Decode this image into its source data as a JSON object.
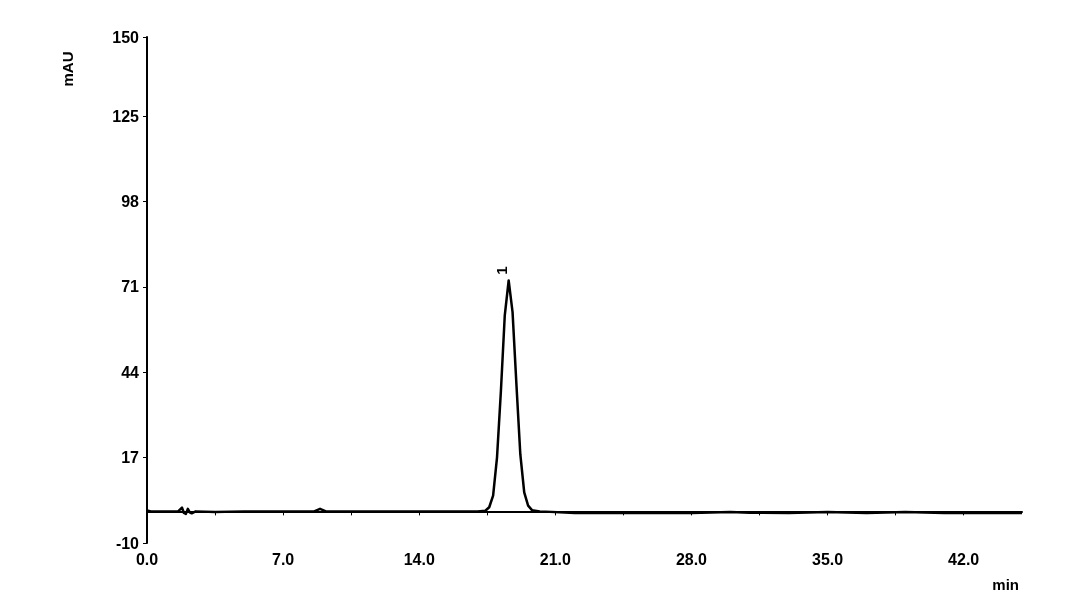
{
  "chart_data": {
    "type": "line",
    "xlabel": "min",
    "ylabel": "mAU",
    "xlim": [
      0,
      45
    ],
    "ylim": [
      -10,
      150
    ],
    "xticks": [
      {
        "value": 0,
        "label": "0.0"
      },
      {
        "value": 3.5,
        "label": null
      },
      {
        "value": 7,
        "label": "7.0"
      },
      {
        "value": 10.5,
        "label": null
      },
      {
        "value": 14,
        "label": "14.0"
      },
      {
        "value": 17.5,
        "label": null
      },
      {
        "value": 21,
        "label": "21.0"
      },
      {
        "value": 24.5,
        "label": null
      },
      {
        "value": 28,
        "label": "28.0"
      },
      {
        "value": 31.5,
        "label": null
      },
      {
        "value": 35,
        "label": "35.0"
      },
      {
        "value": 38.5,
        "label": null
      },
      {
        "value": 42,
        "label": "42.0"
      }
    ],
    "yticks": [
      -10,
      17,
      44,
      71,
      98,
      125,
      150
    ],
    "marker": "none",
    "line_style": "solid",
    "series": [
      {
        "color": "#000000",
        "x": [
          0,
          0.2,
          1.6,
          1.8,
          1.9,
          2.0,
          2.1,
          2.2,
          2.3,
          2.5,
          3.5,
          5,
          7,
          8.6,
          8.9,
          9.2,
          10,
          12,
          14,
          16,
          17,
          17.4,
          17.6,
          17.8,
          18.0,
          18.2,
          18.4,
          18.6,
          18.8,
          19.0,
          19.2,
          19.4,
          19.6,
          19.8,
          20.2,
          22,
          25,
          28,
          30,
          31,
          33,
          35,
          37,
          39,
          41,
          43,
          45
        ],
        "values": [
          0.3,
          0,
          0,
          1.2,
          -0.5,
          -0.8,
          0.8,
          -0.3,
          -0.6,
          0,
          -0.2,
          0,
          0,
          0,
          0.8,
          0,
          0,
          0,
          0,
          0,
          0,
          0.2,
          1.3,
          5,
          17,
          38,
          62,
          73,
          63,
          40,
          18,
          6,
          1.8,
          0.4,
          0,
          -0.5,
          -0.5,
          -0.5,
          -0.2,
          -0.4,
          -0.5,
          -0.2,
          -0.5,
          -0.2,
          -0.5,
          -0.5,
          -0.5
        ]
      }
    ],
    "annotations": [
      {
        "text": "1",
        "x": 18.6,
        "y": 73
      }
    ]
  }
}
